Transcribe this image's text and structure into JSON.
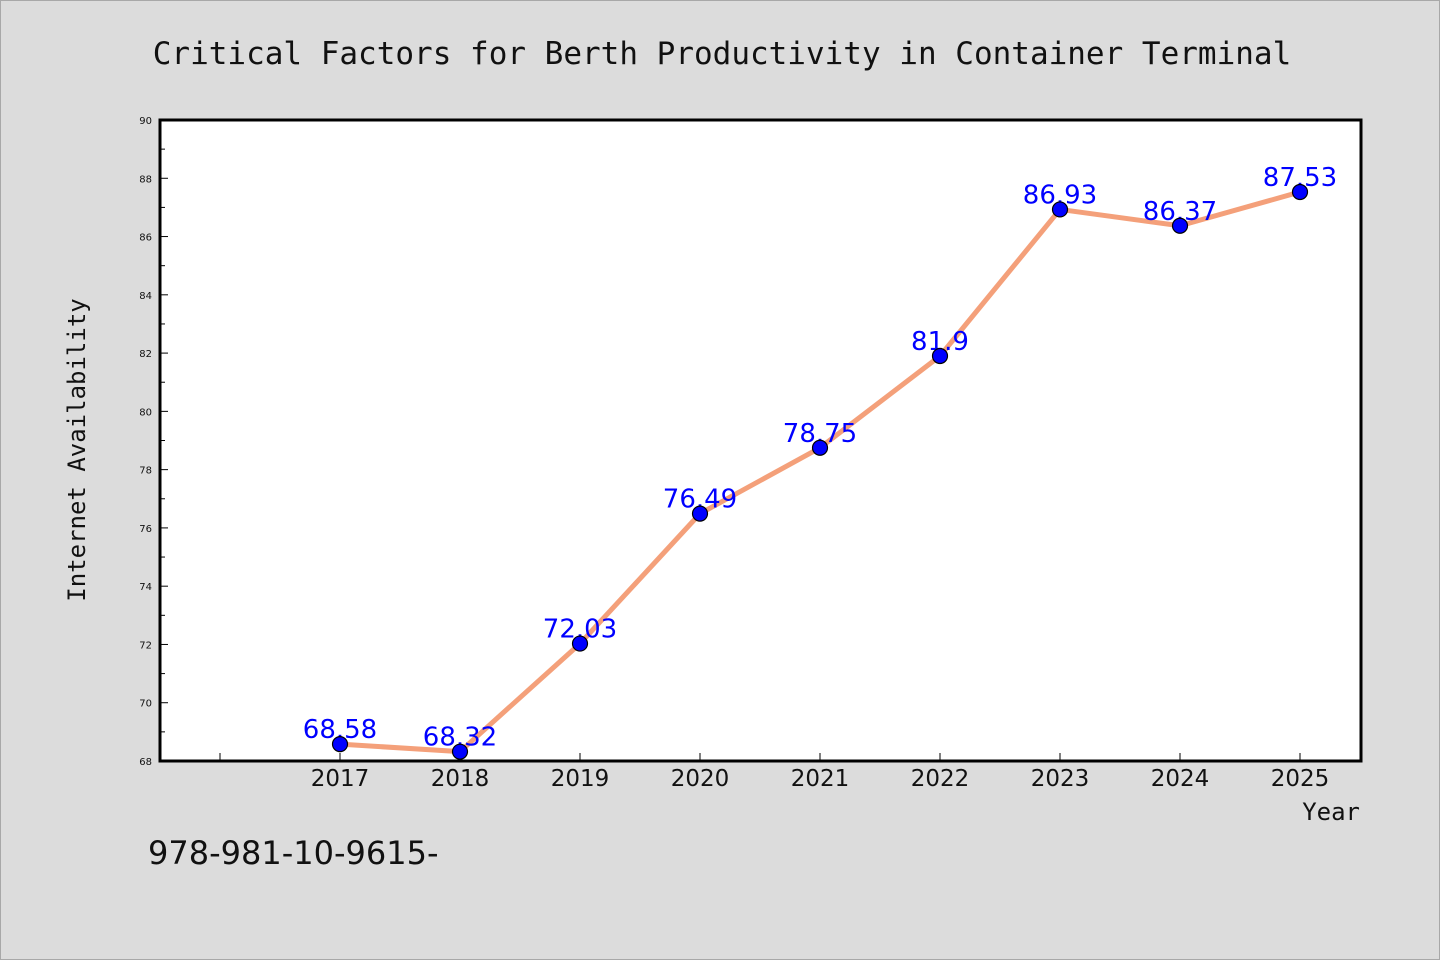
{
  "colors": {
    "background": "#dcdcdc",
    "plot_background": "#ffffff",
    "line": "#f4a07a",
    "marker": "#0000ff",
    "data_label": "#0000ff"
  },
  "footer_text": "978-981-10-9615-",
  "chart_data": {
    "type": "line",
    "title": "Critical Factors for Berth Productivity in Container Terminal",
    "xlabel": "Year",
    "ylabel": "Internet Availability",
    "categories": [
      "2017",
      "2018",
      "2019",
      "2020",
      "2021",
      "2022",
      "2023",
      "2024",
      "2025"
    ],
    "series": [
      {
        "values": [
          68.58,
          68.32,
          72.03,
          76.49,
          78.75,
          81.9,
          86.93,
          86.37,
          87.53
        ],
        "labels": [
          "68.58",
          "68.32",
          "72.03",
          "76.49",
          "78.75",
          "81.9",
          "86.93",
          "86.37",
          "87.53"
        ]
      }
    ],
    "ylim": [
      68,
      90
    ],
    "yticks": [
      68,
      70,
      72,
      74,
      76,
      78,
      80,
      82,
      84,
      86,
      88,
      90
    ],
    "grid": false,
    "marker": "circle"
  }
}
